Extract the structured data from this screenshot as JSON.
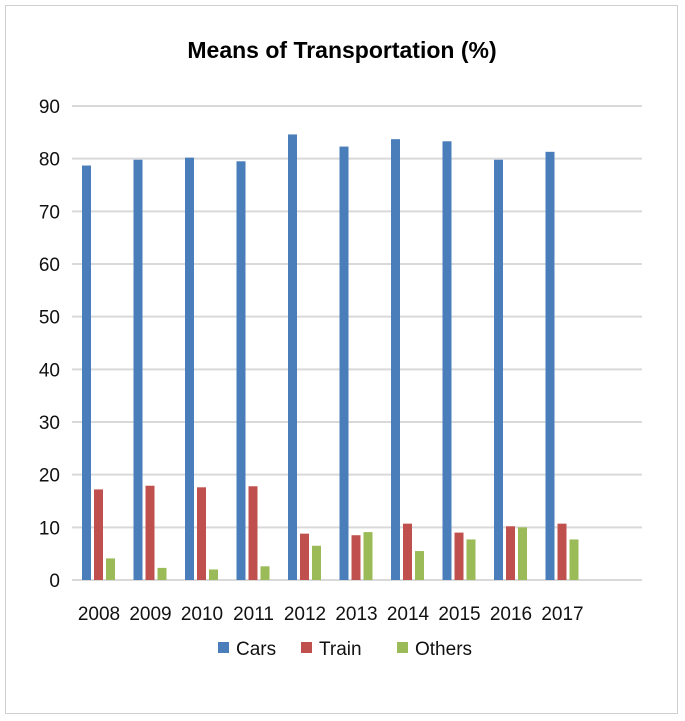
{
  "chart_data": {
    "type": "bar",
    "title": "Means of Transportation (%)",
    "xlabel": "",
    "ylabel": "",
    "categories": [
      "2008",
      "2009",
      "2010",
      "2011",
      "2012",
      "2013",
      "2014",
      "2015",
      "2016",
      "2017"
    ],
    "ylim": [
      0,
      90
    ],
    "yticks": [
      0,
      10,
      20,
      30,
      40,
      50,
      60,
      70,
      80,
      90
    ],
    "grid": true,
    "legend": "bottom",
    "series": [
      {
        "name": "Cars",
        "color": "#4a7ebb",
        "values": [
          78.7,
          79.8,
          80.2,
          79.5,
          84.6,
          82.3,
          83.7,
          83.3,
          79.8,
          81.3
        ]
      },
      {
        "name": "Train",
        "color": "#c0504d",
        "values": [
          17.2,
          17.9,
          17.6,
          17.8,
          8.8,
          8.5,
          10.7,
          9.0,
          10.2,
          10.7
        ]
      },
      {
        "name": "Others",
        "color": "#9bbb59",
        "values": [
          4.1,
          2.3,
          2.0,
          2.6,
          6.5,
          9.1,
          5.5,
          7.7,
          10.0,
          7.7
        ]
      }
    ]
  }
}
